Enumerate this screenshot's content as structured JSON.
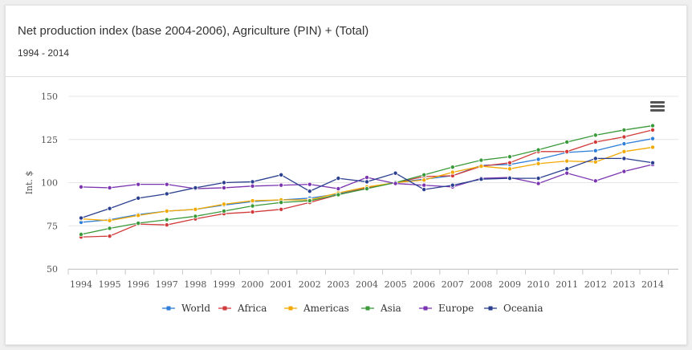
{
  "header": {
    "title": "Net production index (base 2004-2006), Agriculture (PIN) + (Total)",
    "subtitle": "1994 - 2014"
  },
  "menu_icon": "hamburger-menu-icon",
  "chart_data": {
    "type": "line",
    "ylabel": "Int. $",
    "xlabel": "",
    "ylim": [
      50,
      150
    ],
    "yticks": [
      50,
      75,
      100,
      125,
      150
    ],
    "grid": "horizontal",
    "legend_position": "bottom",
    "x": [
      "1994",
      "1995",
      "1996",
      "1997",
      "1998",
      "1999",
      "2000",
      "2001",
      "2002",
      "2003",
      "2004",
      "2005",
      "2006",
      "2007",
      "2008",
      "2009",
      "2010",
      "2011",
      "2012",
      "2013",
      "2014"
    ],
    "series": [
      {
        "name": "World",
        "color": "#2f7ed8",
        "values": [
          77,
          78.5,
          81.5,
          83.5,
          84.5,
          87,
          89,
          90,
          91,
          93.5,
          97,
          100,
          102,
          104,
          110,
          110.5,
          113.5,
          117.5,
          118.5,
          122.5,
          125.5
        ]
      },
      {
        "name": "Africa",
        "color": "#d13b3b",
        "values": [
          68.5,
          69,
          76,
          75.5,
          79,
          82,
          83,
          84.5,
          88.5,
          93,
          97,
          100,
          103.5,
          104,
          109.5,
          111.5,
          118,
          118,
          123.5,
          126.5,
          130.5
        ]
      },
      {
        "name": "Americas",
        "color": "#f2a900",
        "values": [
          79,
          78,
          81,
          83.5,
          84.5,
          87.5,
          89.5,
          90,
          90,
          94,
          97.5,
          100,
          101.5,
          106,
          109.5,
          108,
          111,
          112.5,
          112,
          118,
          120.5
        ]
      },
      {
        "name": "Asia",
        "color": "#3a9a3a",
        "values": [
          70,
          73.5,
          76.5,
          78.5,
          80.5,
          83.5,
          86.5,
          88.5,
          89.5,
          93,
          96.5,
          100,
          104.5,
          109,
          113,
          115,
          119,
          123.5,
          127.5,
          130.5,
          133
        ]
      },
      {
        "name": "Europe",
        "color": "#7b35b0",
        "values": [
          97.5,
          97,
          99,
          99,
          96.5,
          97,
          98,
          98.5,
          99,
          96.5,
          103,
          99.5,
          98.5,
          97.5,
          102.5,
          103,
          99.5,
          105.5,
          101,
          106.5,
          110.5
        ]
      },
      {
        "name": "Oceania",
        "color": "#2a3f8f",
        "values": [
          79.5,
          85,
          91,
          93.5,
          97,
          100,
          100.5,
          104.5,
          95,
          102.5,
          100.5,
          105.5,
          96,
          98.5,
          102,
          102.5,
          102.5,
          108,
          114,
          114,
          111.5
        ]
      }
    ]
  }
}
